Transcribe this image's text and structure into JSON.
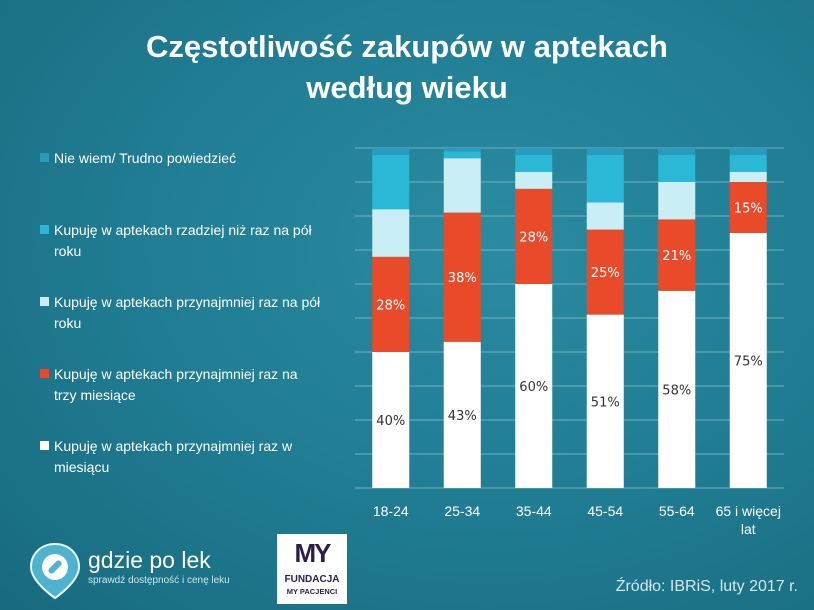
{
  "title_line1": "Częstotliwość zakupów w aptekach",
  "title_line2": "według wieku",
  "legend": [
    {
      "label": "Nie wiem/ Trudno powiedzieć",
      "color": "#2b9bbd"
    },
    {
      "label": "Kupuję w aptekach rzadziej niż raz na pół roku",
      "color": "#2bb8d6"
    },
    {
      "label": "Kupuję w aptekach przynajmniej raz na pół roku",
      "color": "#c9eef5"
    },
    {
      "label": "Kupuję w aptekach przynajmniej raz na trzy miesiące",
      "color": "#e84a2a"
    },
    {
      "label": "Kupuję w aptekach przynajmniej raz w miesiącu",
      "color": "#ffffff"
    }
  ],
  "chart_data": {
    "type": "bar",
    "stacked": true,
    "normalized": true,
    "categories": [
      "18-24",
      "25-34",
      "35-44",
      "45-54",
      "55-64",
      "65 i więcej lat"
    ],
    "series": [
      {
        "name": "Kupuję w aptekach przynajmniej raz w miesiącu",
        "values": [
          40,
          43,
          60,
          51,
          58,
          75
        ],
        "labels": [
          "40%",
          "43%",
          "60%",
          "51%",
          "58%",
          "75%"
        ],
        "color": "#ffffff"
      },
      {
        "name": "Kupuję w aptekach przynajmniej raz na trzy miesiące",
        "values": [
          28,
          38,
          28,
          25,
          21,
          15
        ],
        "labels": [
          "28%",
          "38%",
          "28%",
          "25%",
          "21%",
          "15%"
        ],
        "color": "#e84a2a"
      },
      {
        "name": "Kupuję w aptekach przynajmniej raz na pół roku",
        "values": [
          14,
          16,
          5,
          8,
          11,
          3
        ],
        "color": "#c9eef5"
      },
      {
        "name": "Kupuję w aptekach rzadziej niż raz na pół roku",
        "values": [
          16,
          2,
          5,
          14,
          8,
          5
        ],
        "color": "#2bb8d6"
      },
      {
        "name": "Nie wiem/ Trudno powiedzieć",
        "values": [
          2,
          1,
          2,
          2,
          2,
          2
        ],
        "color": "#2b9bbd"
      }
    ],
    "ylim": [
      0,
      100
    ],
    "grid": true,
    "legend_position": "left"
  },
  "footer": {
    "brand_name": "gdzie po lek",
    "brand_tagline": "sprawdź dostępność i cenę leku",
    "partner_big": "MY",
    "partner_line1": "FUNDACJA",
    "partner_line2": "MY PACJENCI",
    "source": "Źródło: IBRiS, luty 2017 r."
  }
}
